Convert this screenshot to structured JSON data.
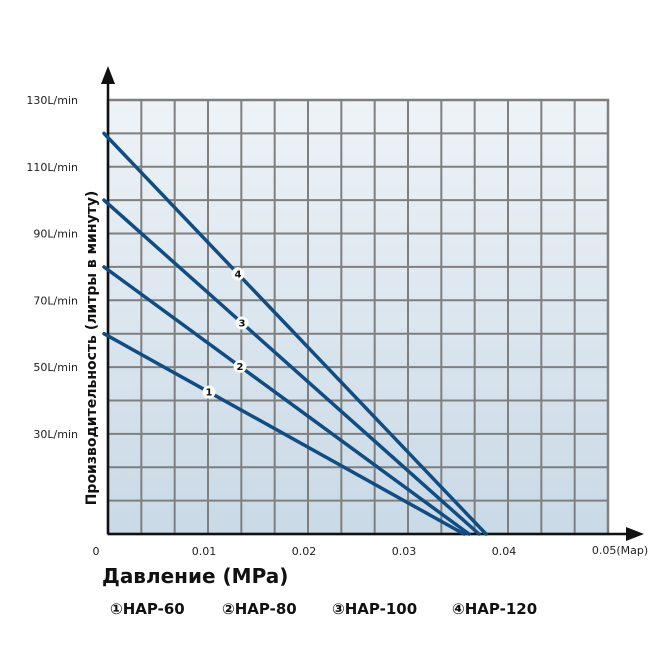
{
  "chart_data": {
    "type": "line",
    "title": "",
    "xlabel": "Давление (MPa)",
    "ylabel": "Производительность (литры в минуту)",
    "x_unit_label": "0.05(Map)",
    "xlim": [
      0,
      0.05
    ],
    "ylim": [
      0,
      130
    ],
    "x_ticks": [
      "0",
      "0.01",
      "0.02",
      "0.03",
      "0.04"
    ],
    "y_ticks": [
      {
        "value": 30,
        "label": "30L/min"
      },
      {
        "value": 50,
        "label": "50L/min"
      },
      {
        "value": 70,
        "label": "70L/min"
      },
      {
        "value": 90,
        "label": "90L/min"
      },
      {
        "value": 110,
        "label": "110L/min"
      },
      {
        "value": 130,
        "label": "130L/min"
      }
    ],
    "grid": true,
    "legend_placement": "bottom",
    "colors": {
      "line": "#114d82",
      "grid": "#7f7f7f",
      "background_top": "#eef3f7",
      "background_bottom": "#c9d9e6"
    },
    "series": [
      {
        "marker": "1",
        "name": "HAP-60",
        "x": [
          0,
          0.036
        ],
        "y": [
          60,
          0
        ],
        "label_at": 0.0105
      },
      {
        "marker": "2",
        "name": "HAP-80",
        "x": [
          0,
          0.0365
        ],
        "y": [
          80,
          0
        ],
        "label_at": 0.0136
      },
      {
        "marker": "3",
        "name": "HAP-100",
        "x": [
          0,
          0.0375
        ],
        "y": [
          100,
          0
        ],
        "label_at": 0.0138
      },
      {
        "marker": "4",
        "name": "HAP-120",
        "x": [
          0,
          0.0382
        ],
        "y": [
          120,
          0
        ],
        "label_at": 0.0134
      }
    ],
    "legend": [
      {
        "symbol": "①",
        "label": "HAP-60"
      },
      {
        "symbol": "②",
        "label": "HAP-80"
      },
      {
        "symbol": "③",
        "label": "HAP-100"
      },
      {
        "symbol": "④",
        "label": "HAP-120"
      }
    ]
  }
}
